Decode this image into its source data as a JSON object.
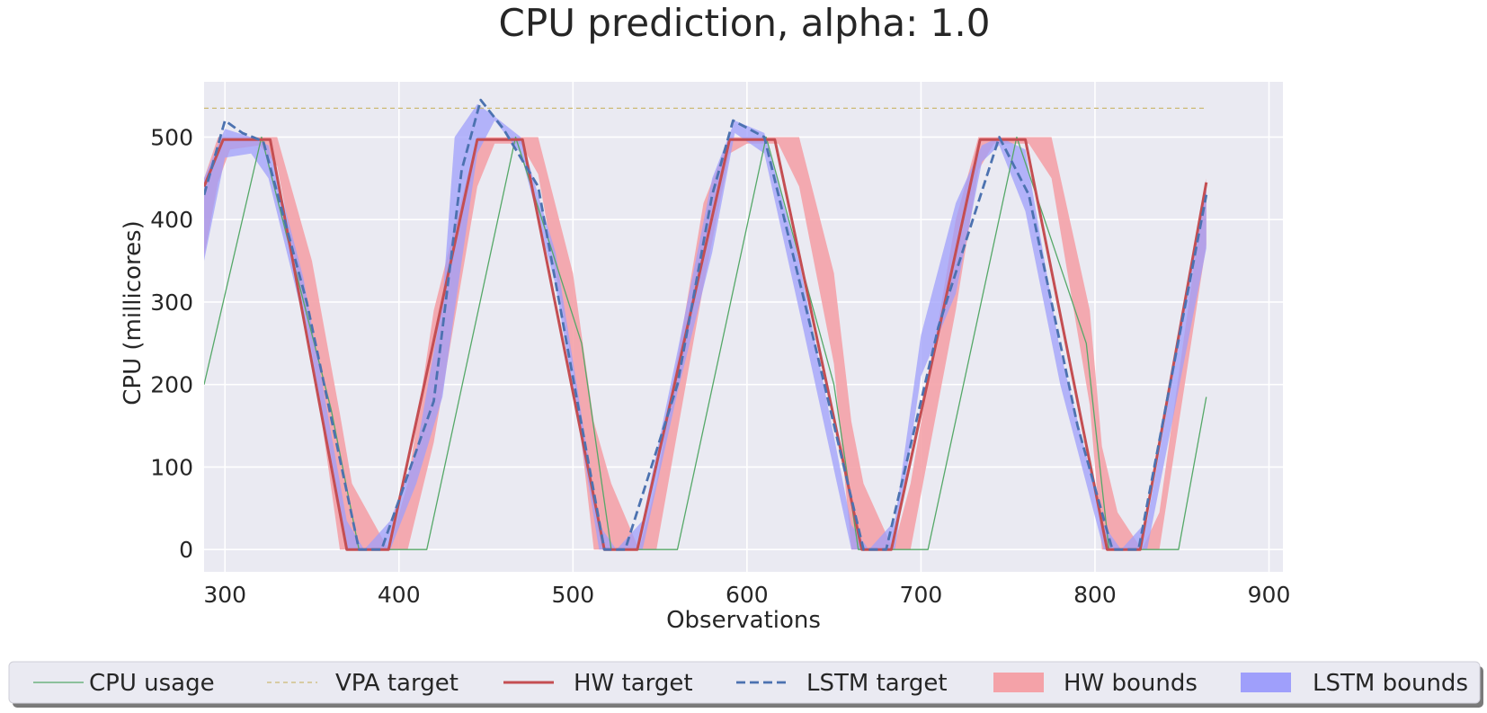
{
  "chart_data": {
    "type": "line",
    "title": "CPU prediction, alpha: 1.0",
    "xlabel": "Observations",
    "ylabel": "CPU (millicores)",
    "xlim": [
      288,
      908
    ],
    "ylim": [
      -27,
      567
    ],
    "xticks": [
      300,
      400,
      500,
      600,
      700,
      800,
      900
    ],
    "yticks": [
      0,
      100,
      200,
      300,
      400,
      500
    ],
    "grid": true,
    "background": "#eaeaf2",
    "legend_position": "bottom-center",
    "series": [
      {
        "name": "CPU usage",
        "kind": "line",
        "color": "#55a868",
        "dash": "solid",
        "x": [
          288,
          321,
          361,
          377,
          416,
          467,
          505,
          522,
          560,
          611,
          650,
          664,
          704,
          755,
          795,
          808,
          848,
          864
        ],
        "y": [
          200,
          500,
          170,
          0,
          0,
          500,
          250,
          0,
          0,
          500,
          200,
          0,
          0,
          500,
          250,
          0,
          0,
          185
        ]
      },
      {
        "name": "VPA target",
        "kind": "line",
        "color": "#ccb974",
        "dash": "dashed",
        "x": [
          288,
          864
        ],
        "y": [
          535,
          535
        ]
      },
      {
        "name": "HW target",
        "kind": "line",
        "color": "#c44e52",
        "dash": "solid",
        "x": [
          288,
          299,
          326,
          370,
          394,
          445,
          471,
          518,
          537,
          590,
          616,
          666,
          683,
          734,
          760,
          807,
          826,
          864
        ],
        "y": [
          440,
          497,
          497,
          0,
          0,
          497,
          497,
          0,
          0,
          497,
          497,
          0,
          0,
          497,
          497,
          0,
          0,
          445
        ]
      },
      {
        "name": "LSTM target",
        "kind": "line",
        "color": "#4c72b0",
        "dash": "dashed",
        "x": [
          288,
          300,
          310,
          322,
          347,
          377,
          390,
          420,
          436,
          447,
          460,
          480,
          518,
          530,
          560,
          580,
          592,
          610,
          640,
          667,
          680,
          710,
          745,
          762,
          790,
          810,
          825,
          864
        ],
        "y": [
          430,
          520,
          505,
          495,
          300,
          0,
          0,
          180,
          460,
          545,
          510,
          440,
          0,
          0,
          200,
          430,
          520,
          500,
          240,
          0,
          0,
          270,
          500,
          430,
          150,
          0,
          0,
          430
        ]
      },
      {
        "name": "HW bounds",
        "kind": "band",
        "color": "#f4a2a8",
        "x": [
          288,
          296,
          303,
          320,
          330,
          350,
          366,
          373,
          394,
          405,
          420,
          445,
          455,
          470,
          480,
          500,
          512,
          522,
          538,
          548,
          575,
          590,
          600,
          618,
          630,
          650,
          660,
          667,
          684,
          694,
          720,
          733,
          742,
          762,
          775,
          797,
          804,
          813,
          827,
          837,
          864
        ],
        "lower": [
          355,
          445,
          485,
          490,
          465,
          240,
          0,
          0,
          0,
          0,
          130,
          440,
          492,
          492,
          455,
          220,
          0,
          0,
          0,
          0,
          320,
          480,
          492,
          492,
          440,
          225,
          0,
          0,
          0,
          0,
          290,
          460,
          492,
          492,
          450,
          175,
          0,
          0,
          0,
          0,
          370
        ],
        "upper": [
          450,
          500,
          500,
          500,
          500,
          350,
          165,
          80,
          0,
          80,
          290,
          500,
          500,
          500,
          500,
          335,
          155,
          80,
          0,
          80,
          420,
          500,
          500,
          500,
          500,
          335,
          155,
          80,
          0,
          80,
          400,
          500,
          500,
          500,
          500,
          290,
          125,
          45,
          0,
          45,
          450
        ]
      },
      {
        "name": "LSTM bounds",
        "kind": "band",
        "color": "#9f9ffb",
        "x": [
          288,
          300,
          315,
          325,
          345,
          370,
          380,
          395,
          410,
          425,
          432,
          445,
          455,
          470,
          490,
          515,
          525,
          540,
          560,
          580,
          593,
          610,
          630,
          660,
          670,
          685,
          700,
          720,
          735,
          745,
          760,
          780,
          805,
          815,
          830,
          864
        ],
        "lower": [
          350,
          475,
          480,
          450,
          280,
          0,
          0,
          0,
          80,
          185,
          290,
          480,
          520,
          480,
          320,
          0,
          0,
          0,
          190,
          360,
          505,
          480,
          290,
          0,
          0,
          0,
          210,
          310,
          470,
          490,
          410,
          200,
          0,
          0,
          0,
          365
        ],
        "upper": [
          450,
          510,
          500,
          490,
          330,
          35,
          0,
          35,
          120,
          300,
          500,
          540,
          525,
          500,
          360,
          30,
          0,
          35,
          240,
          450,
          520,
          505,
          350,
          30,
          0,
          35,
          260,
          420,
          490,
          500,
          485,
          240,
          30,
          0,
          35,
          440
        ]
      }
    ]
  }
}
